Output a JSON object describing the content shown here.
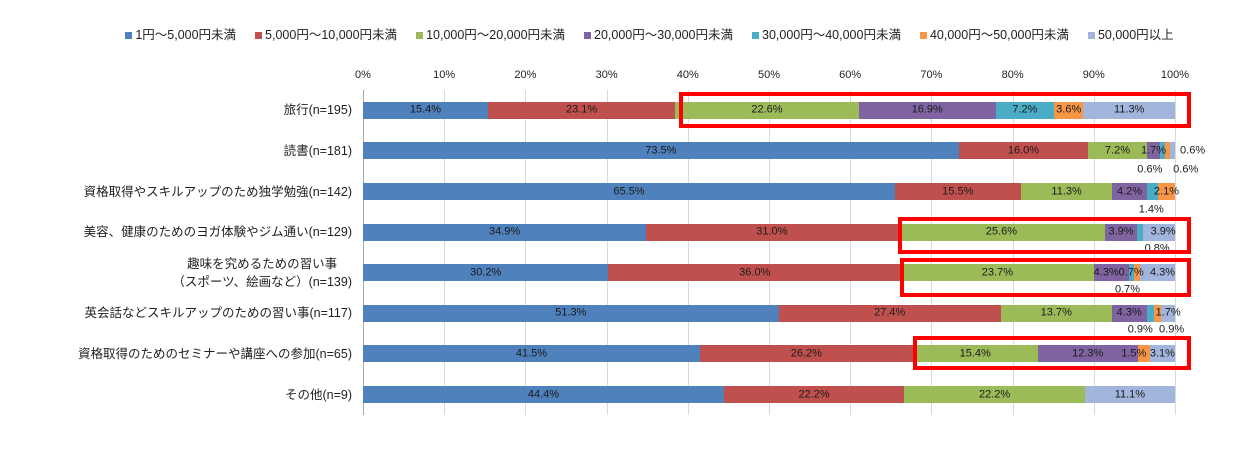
{
  "chart_data": {
    "type": "bar",
    "orientation": "horizontal",
    "stacked": "percent",
    "categories": [
      "旅行(n=195)",
      "読書(n=181)",
      "資格取得やスキルアップのため独学勉強(n=142)",
      "美容、健康のためのヨガ体験やジム通い(n=129)",
      "趣味を究めるための習い事\n（スポーツ、絵画など）(n=139)",
      "英会話などスキルアップのための習い事(n=117)",
      "資格取得のためのセミナーや講座への参加(n=65)",
      "その他(n=9)"
    ],
    "series": [
      {
        "name": "1円～5,000円未満",
        "color": "#4f81bd",
        "values": [
          15.4,
          73.5,
          65.5,
          34.9,
          30.2,
          51.3,
          41.5,
          44.4
        ],
        "labels": [
          "15.4%",
          "73.5%",
          "65.5%",
          "34.9%",
          "30.2%",
          "51.3%",
          "41.5%",
          "44.4%"
        ]
      },
      {
        "name": "5,000円～10,000円未満",
        "color": "#c0504d",
        "values": [
          23.1,
          16.0,
          15.5,
          31.0,
          36.0,
          27.4,
          26.2,
          22.2
        ],
        "labels": [
          "23.1%",
          "16.0%",
          "15.5%",
          "31.0%",
          "36.0%",
          "27.4%",
          "26.2%",
          "22.2%"
        ]
      },
      {
        "name": "10,000円～20,000円未満",
        "color": "#9bbb59",
        "values": [
          22.6,
          7.2,
          11.3,
          25.6,
          23.7,
          13.7,
          15.4,
          22.2
        ],
        "labels": [
          "22.6%",
          "7.2%",
          "11.3%",
          "25.6%",
          "23.7%",
          "13.7%",
          "15.4%",
          "22.2%"
        ]
      },
      {
        "name": "20,000円～30,000円未満",
        "color": "#8064a2",
        "values": [
          16.9,
          1.7,
          4.2,
          3.9,
          4.3,
          4.3,
          12.3,
          0
        ],
        "labels": [
          "16.9%",
          "1.7%",
          "4.2%",
          "3.9%",
          "4.3%",
          "4.3%",
          "12.3%",
          null
        ]
      },
      {
        "name": "30,000円～40,000円未満",
        "color": "#4bacc6",
        "values": [
          7.2,
          0.6,
          1.4,
          0.8,
          0.7,
          0.9,
          0,
          0
        ],
        "labels": [
          "7.2%",
          "0.6%",
          "1.4%",
          "0.8%",
          "0.7%",
          "0.9%",
          null,
          null
        ]
      },
      {
        "name": "40,000円～50,000円未満",
        "color": "#f79646",
        "values": [
          3.6,
          0.6,
          2.1,
          0,
          0.7,
          0.9,
          1.5,
          0
        ],
        "labels": [
          "3.6%",
          "0.6%",
          "2.1%",
          null,
          "0.7%",
          "0.9%",
          "1.5%",
          null
        ]
      },
      {
        "name": "50,000円以上",
        "color": "#a2b6dd",
        "values": [
          11.3,
          0.6,
          0,
          3.9,
          4.3,
          1.7,
          3.1,
          11.1
        ],
        "labels": [
          "11.3%",
          "0.6%",
          null,
          "3.9%",
          "4.3%",
          "1.7%",
          "3.1%",
          "11.1%"
        ]
      }
    ],
    "x_axis": {
      "position": "top",
      "range": [
        0,
        100
      ],
      "tick_labels": [
        "0%",
        "10%",
        "20%",
        "30%",
        "40%",
        "50%",
        "60%",
        "70%",
        "80%",
        "90%",
        "100%"
      ]
    },
    "grid": {
      "vertical": true,
      "horizontal": false
    },
    "legend": {
      "position": "top"
    },
    "highlights": {
      "color": "#ff0000",
      "categories": [
        0,
        3,
        4,
        6
      ],
      "from_series": 2
    }
  }
}
